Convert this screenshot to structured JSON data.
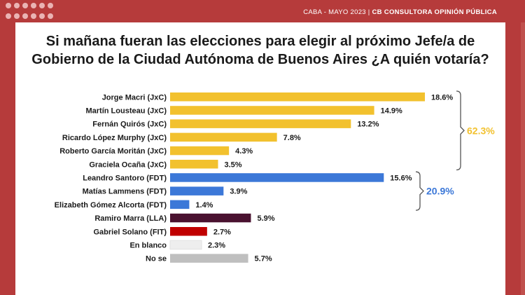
{
  "header": {
    "place_date": "CABA  - MAYO 2023 |",
    "source": " CB CONSULTORA OPINIÓN PÚBLICA"
  },
  "title": {
    "line1": "Si mañana fueran las elecciones para elegir al próximo Jefe/a de",
    "line2": "Gobierno de la Ciudad Autónoma de Buenos Aires ¿A quién votaría?"
  },
  "colors": {
    "background": "#b63b3b",
    "jxc": "#f2c12e",
    "fdt": "#3c78d8",
    "lla": "#4a1230",
    "fit": "#c00000",
    "blanco": "#eeeeee",
    "nose": "#bfbfbf",
    "jxc_total": "#f2c12e",
    "fdt_total": "#3c78d8"
  },
  "chart_data": {
    "type": "bar",
    "orientation": "horizontal",
    "categories": [
      "Jorge Macri (JxC)",
      "Martín Lousteau (JxC)",
      "Fernán Quirós (JxC)",
      "Ricardo López Murphy (JxC)",
      "Roberto García Moritán (JxC)",
      "Graciela Ocaña (JxC)",
      "Leandro Santoro (FDT)",
      "Matías Lammens (FDT)",
      "Elizabeth Gómez Alcorta (FDT)",
      "Ramiro Marra (LLA)",
      "Gabriel Solano (FIT)",
      "En blanco",
      "No se"
    ],
    "values": [
      18.6,
      14.9,
      13.2,
      7.8,
      4.3,
      3.5,
      15.6,
      3.9,
      1.4,
      5.9,
      2.7,
      2.3,
      5.7
    ],
    "value_labels": [
      "18.6%",
      "14.9%",
      "13.2%",
      "7.8%",
      "4.3%",
      "3.5%",
      "15.6%",
      "3.9%",
      "1.4%",
      "5.9%",
      "2.7%",
      "2.3%",
      "5.7%"
    ],
    "groups": [
      "jxc",
      "jxc",
      "jxc",
      "jxc",
      "jxc",
      "jxc",
      "fdt",
      "fdt",
      "fdt",
      "lla",
      "fit",
      "blanco",
      "nose"
    ],
    "brackets": [
      {
        "group": "jxc",
        "label": "62.3%",
        "from": 0,
        "to": 5
      },
      {
        "group": "fdt",
        "label": "20.9%",
        "from": 6,
        "to": 8
      }
    ],
    "xlim": [
      0,
      20
    ],
    "grid": false,
    "legend": "none"
  }
}
